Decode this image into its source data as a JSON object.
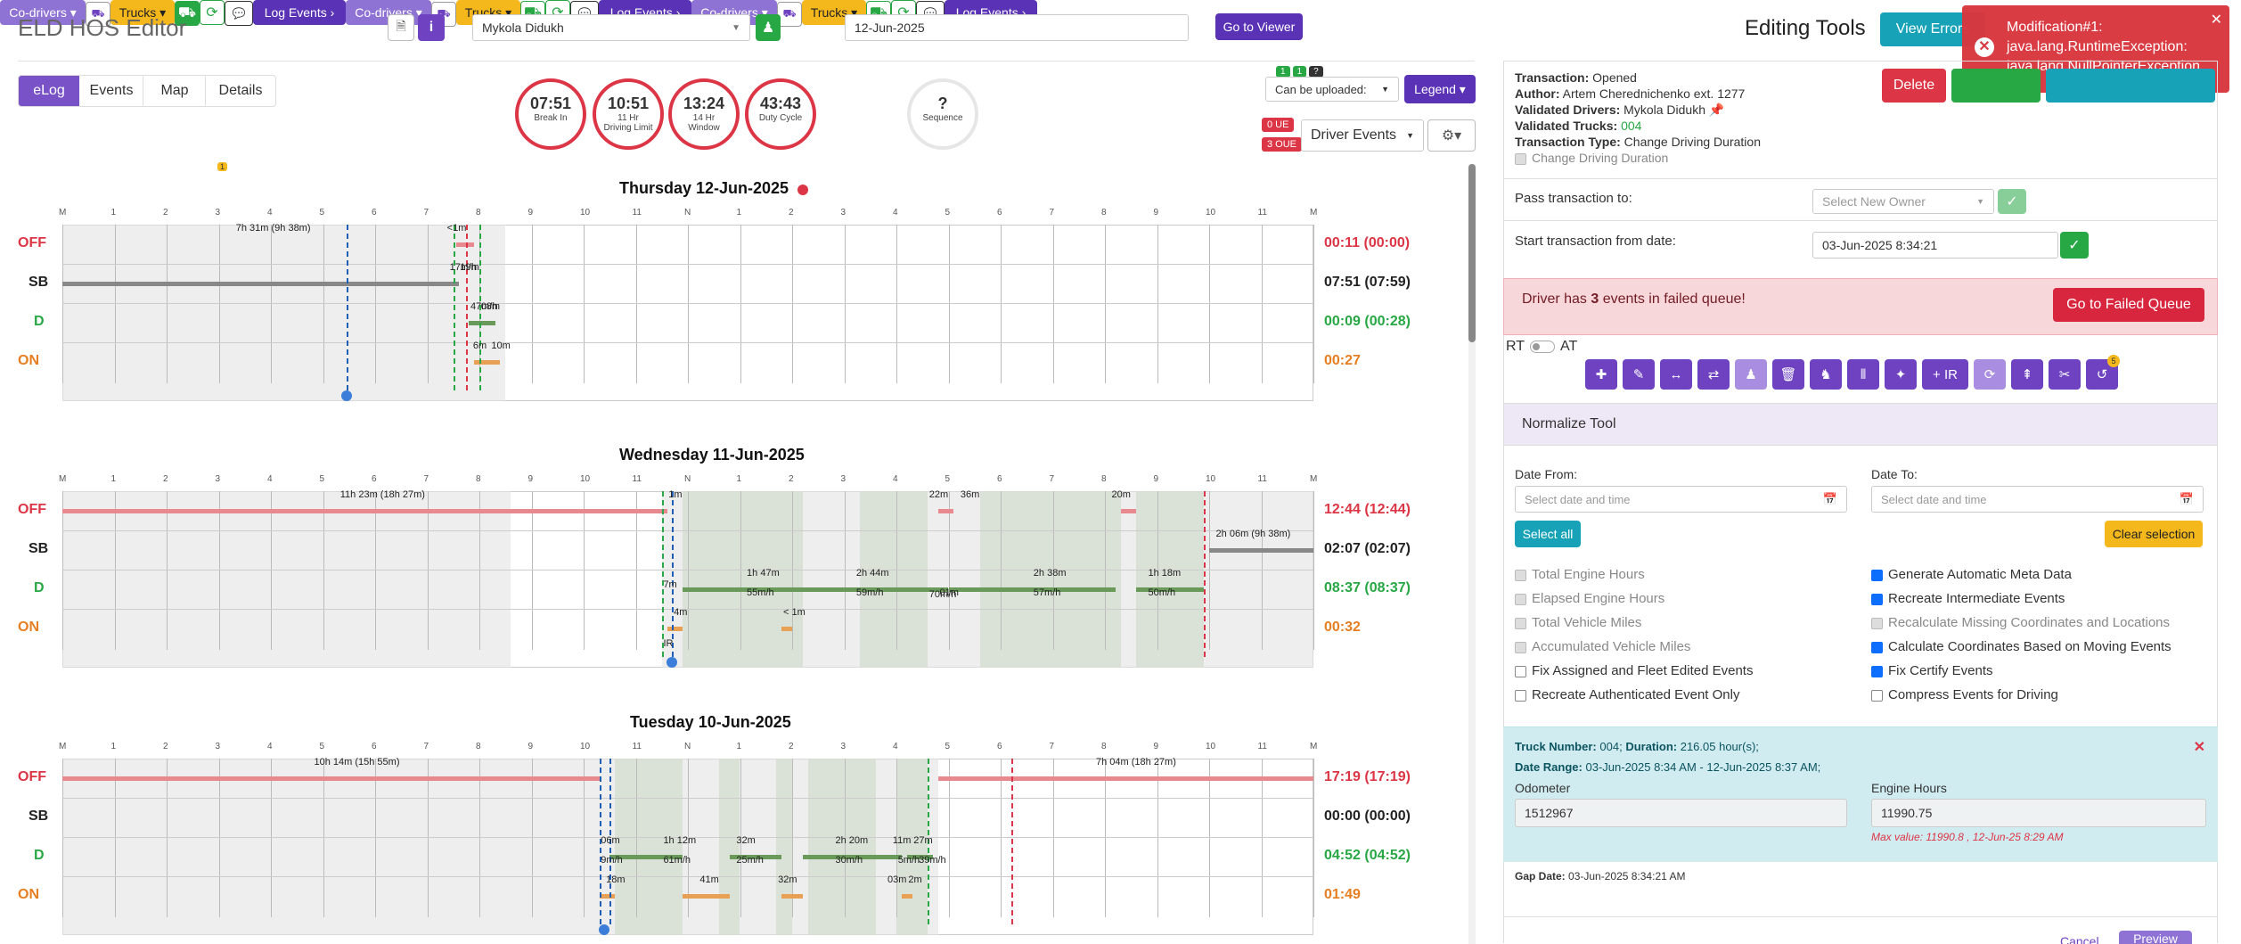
{
  "app": {
    "title": "ELD HOS Editor",
    "driver": "Mykola Didukh",
    "date": "12-Jun-2025",
    "go_viewer": "Go to Viewer"
  },
  "tabs": [
    "eLog",
    "Events",
    "Map",
    "Details"
  ],
  "rings": [
    {
      "big": "07:51",
      "sm1": "Break In",
      "sm2": ""
    },
    {
      "big": "10:51",
      "sm1": "11 Hr",
      "sm2": "Driving Limit"
    },
    {
      "big": "13:24",
      "sm1": "14 Hr",
      "sm2": "Window"
    },
    {
      "big": "43:43",
      "sm1": "Duty Cycle",
      "sm2": ""
    }
  ],
  "sequence": {
    "big": "?",
    "label": "Sequence"
  },
  "upload": {
    "label": "Can be uploaded:",
    "legend": "Legend",
    "driver_events": "Driver Events",
    "ue": "0 UE",
    "oue": "3 OUE",
    "b1": "1",
    "b2": "1",
    "b3": "?"
  },
  "buttons": {
    "codrivers": "Co-drivers",
    "trucks": "Trucks",
    "log_events": "Log Events",
    "badge": "1"
  },
  "days": [
    {
      "title": "Thursday 12-Jun-2025",
      "totals": [
        "00:11 (00:00)",
        "07:51 (07:59)",
        "00:09 (00:28)",
        "00:27"
      ],
      "labels": [
        "7h 31m (9h 38m)",
        "<1m",
        "17m/h",
        "19m",
        "08m",
        "47m/h",
        "6m",
        "10m"
      ]
    },
    {
      "title": "Wednesday 11-Jun-2025",
      "totals": [
        "12:44 (12:44)",
        "02:07 (02:07)",
        "08:37 (08:37)",
        "00:32"
      ],
      "labels": [
        "11h 23m (18h 27m)",
        "1m",
        "22m",
        "36m",
        "20m",
        "2h 06m (9h 38m)",
        "1h 47m",
        "2h 44m",
        "2h 38m",
        "1h 18m",
        "55m/h",
        "59m/h",
        "01m",
        "70m/h",
        "57m/h",
        "50m/h",
        "7m",
        "4m",
        "< 1m",
        "IR"
      ]
    },
    {
      "title": "Tuesday 10-Jun-2025",
      "totals": [
        "17:19 (17:19)",
        "00:00 (00:00)",
        "04:52 (04:52)",
        "01:49"
      ],
      "labels": [
        "10h 14m (15h 55m)",
        "7h 04m (18h 27m)",
        "06m",
        "1h 12m",
        "32m",
        "2h 20m",
        "11m",
        "27m",
        "9m/h",
        "61m/h",
        "25m/h",
        "30m/h",
        "5m/h",
        "39m/h",
        "18m",
        "41m",
        "32m",
        "03m",
        "2m"
      ]
    }
  ],
  "rowlabels": [
    "OFF",
    "SB",
    "D",
    "ON"
  ],
  "axis": [
    "M",
    "1",
    "2",
    "3",
    "4",
    "5",
    "6",
    "7",
    "8",
    "9",
    "10",
    "11",
    "N",
    "1",
    "2",
    "3",
    "4",
    "5",
    "6",
    "7",
    "8",
    "9",
    "10",
    "11",
    "M"
  ],
  "right": {
    "title": "Editing Tools",
    "view_errors": "View Errors",
    "error": {
      "title": "Modification#1:",
      "l1": "java.lang.RuntimeException:",
      "l2": "java.lang.NullPointerException"
    },
    "tx": {
      "transaction_k": "Transaction:",
      "transaction_v": "Opened",
      "author_k": "Author:",
      "author_v": "Artem Cherednichenko ext. 1277",
      "vdrivers_k": "Validated Drivers:",
      "vdrivers_v": "Mykola Didukh",
      "vtrucks_k": "Validated Trucks:",
      "vtrucks_v": "004",
      "type_k": "Transaction Type:",
      "type_v": "Change Driving Duration",
      "cb": "Change Driving Duration"
    },
    "delete": "Delete",
    "pass_label": "Pass transaction to:",
    "pass_ph": "Select New Owner",
    "start_label": "Start transaction from date:",
    "start_val": "03-Jun-2025 8:34:21",
    "queue_pre": "Driver has",
    "queue_num": "3",
    "queue_post": "events in failed queue!",
    "queue_btn": "Go to Failed Queue",
    "rt": "RT",
    "at": "AT",
    "plus_ir": "+ IR",
    "tool_badge": "5",
    "normalize": "Normalize Tool",
    "date_from": "Date From:",
    "date_to": "Date To:",
    "ph": "Select date and time",
    "select_all": "Select all",
    "clear_sel": "Clear selection",
    "checks_left": [
      "Total Engine Hours",
      "Elapsed Engine Hours",
      "Total Vehicle Miles",
      "Accumulated Vehicle Miles",
      "Fix Assigned and Fleet Edited Events",
      "Recreate Authenticated Event Only"
    ],
    "checks_right": [
      "Generate Automatic Meta Data",
      "Recreate Intermediate Events",
      "Recalculate Missing Coordinates and Locations",
      "Calculate Coordinates Based on Moving Events",
      "Fix Certify Events",
      "Compress Events for Driving"
    ],
    "truck_k": "Truck Number:",
    "truck_v": "004;",
    "dur_k": "Duration:",
    "dur_v": "216.05 hour(s);",
    "range_k": "Date Range:",
    "range_v": "03-Jun-2025 8:34 AM - 12-Jun-2025 8:37 AM;",
    "odo_label": "Odometer",
    "odo_val": "1512967",
    "eng_label": "Engine Hours",
    "eng_val": "11990.75",
    "max": "Max value: 11990.8 , 12-Jun-25 8:29 AM",
    "gap_k": "Gap Date:",
    "gap_v": "03-Jun-2025 8:34:21 AM",
    "cancel": "Cancel",
    "preview": "Preview"
  }
}
